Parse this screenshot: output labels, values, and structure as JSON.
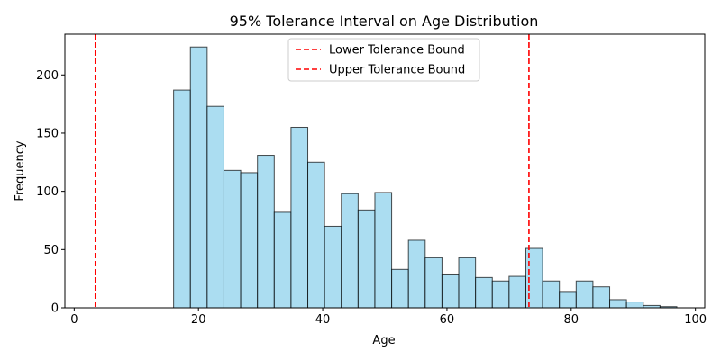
{
  "chart_data": {
    "type": "bar",
    "title": "95% Tolerance Interval on Age Distribution",
    "xlabel": "Age",
    "ylabel": "Frequency",
    "xlim": [
      -1.5,
      101.5
    ],
    "ylim": [
      0,
      235
    ],
    "x_ticks": [
      0,
      20,
      40,
      60,
      80,
      100
    ],
    "y_ticks": [
      0,
      50,
      100,
      150,
      200
    ],
    "bins": {
      "edges": [
        16.0,
        18.7,
        21.4,
        24.1,
        26.8,
        29.5,
        32.2,
        34.9,
        37.6,
        40.3,
        43.0,
        45.7,
        48.4,
        51.1,
        53.8,
        56.5,
        59.2,
        61.9,
        64.6,
        67.3,
        70.0,
        72.7,
        75.4,
        78.1,
        80.8,
        83.5,
        86.2,
        88.9,
        91.6,
        94.3,
        97.0
      ],
      "counts": [
        187,
        224,
        173,
        118,
        116,
        131,
        82,
        155,
        125,
        70,
        98,
        84,
        99,
        33,
        58,
        43,
        29,
        43,
        26,
        23,
        27,
        51,
        23,
        14,
        23,
        18,
        7,
        5,
        2,
        1
      ]
    },
    "bar_color": "#87ceeb",
    "bar_edge_color": "#000000",
    "lines": [
      {
        "name": "Lower Tolerance Bound",
        "x": 3.4,
        "color": "#ff0000",
        "style": "dashed"
      },
      {
        "name": "Upper Tolerance Bound",
        "x": 73.2,
        "color": "#ff0000",
        "style": "dashed"
      }
    ],
    "legend": {
      "placement": "top-center"
    },
    "grid": false
  }
}
